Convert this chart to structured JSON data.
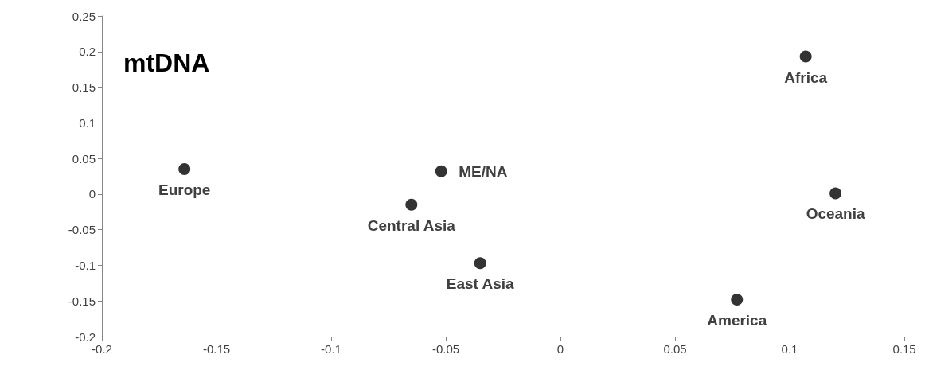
{
  "chart_data": {
    "type": "scatter",
    "title": "mtDNA",
    "x": [
      -0.164,
      -0.065,
      -0.052,
      -0.035,
      0.077,
      0.107,
      0.12
    ],
    "values": [
      0.035,
      -0.015,
      0.032,
      -0.097,
      -0.148,
      0.193,
      0.001
    ],
    "color": "#000000",
    "marker": "circle",
    "grid": false,
    "xlim": [
      -0.2,
      0.15
    ],
    "xticks": [
      -0.2,
      -0.15,
      -0.1,
      -0.05,
      0,
      0.05,
      0.1,
      0.15
    ],
    "ylim": [
      -0.2,
      0.25
    ],
    "yticks": [
      -0.2,
      -0.15,
      -0.1,
      -0.05,
      0,
      0.05,
      0.1,
      0.15,
      0.2,
      0.25
    ],
    "annotations": [
      {
        "text": "Europe",
        "x": -0.164,
        "y": 0.035
      },
      {
        "text": "Central Asia",
        "x": -0.065,
        "y": -0.015
      },
      {
        "text": "ME/NA",
        "x": -0.052,
        "y": 0.032
      },
      {
        "text": "East Asia",
        "x": -0.035,
        "y": -0.097
      },
      {
        "text": "America",
        "x": 0.077,
        "y": -0.148
      },
      {
        "text": "Africa",
        "x": 0.107,
        "y": 0.193
      },
      {
        "text": "Oceania",
        "x": 0.12,
        "y": 0.001
      }
    ]
  }
}
